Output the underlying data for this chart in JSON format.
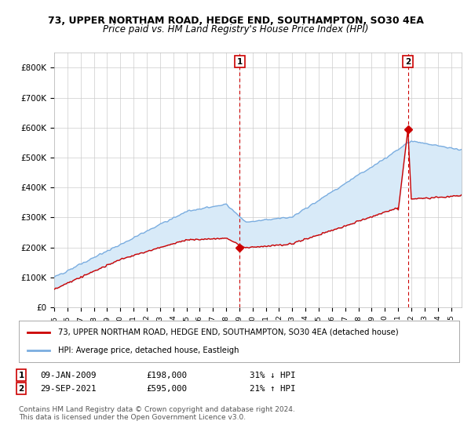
{
  "title_line1": "73, UPPER NORTHAM ROAD, HEDGE END, SOUTHAMPTON, SO30 4EA",
  "title_line2": "Price paid vs. HM Land Registry's House Price Index (HPI)",
  "xlim": [
    1995.0,
    2025.8
  ],
  "ylim": [
    0,
    850000
  ],
  "yticks": [
    0,
    100000,
    200000,
    300000,
    400000,
    500000,
    600000,
    700000,
    800000
  ],
  "ytick_labels": [
    "£0",
    "£100K",
    "£200K",
    "£300K",
    "£400K",
    "£500K",
    "£600K",
    "£700K",
    "£800K"
  ],
  "xtick_years": [
    1995,
    1996,
    1997,
    1998,
    1999,
    2000,
    2001,
    2002,
    2003,
    2004,
    2005,
    2006,
    2007,
    2008,
    2009,
    2010,
    2011,
    2012,
    2013,
    2014,
    2015,
    2016,
    2017,
    2018,
    2019,
    2020,
    2021,
    2022,
    2023,
    2024,
    2025
  ],
  "transaction1_x": 2009.03,
  "transaction1_y": 198000,
  "transaction1_label": "1",
  "transaction1_date": "09-JAN-2009",
  "transaction1_price": "£198,000",
  "transaction1_hpi": "31% ↓ HPI",
  "transaction2_x": 2021.74,
  "transaction2_y": 595000,
  "transaction2_label": "2",
  "transaction2_date": "29-SEP-2021",
  "transaction2_price": "£595,000",
  "transaction2_hpi": "21% ↑ HPI",
  "red_color": "#cc0000",
  "blue_color": "#7aade0",
  "blue_fill_color": "#d8eaf8",
  "bg_color": "#ffffff",
  "grid_color": "#cccccc",
  "legend_line1": "73, UPPER NORTHAM ROAD, HEDGE END, SOUTHAMPTON, SO30 4EA (detached house)",
  "legend_line2": "HPI: Average price, detached house, Eastleigh",
  "footnote": "Contains HM Land Registry data © Crown copyright and database right 2024.\nThis data is licensed under the Open Government Licence v3.0."
}
